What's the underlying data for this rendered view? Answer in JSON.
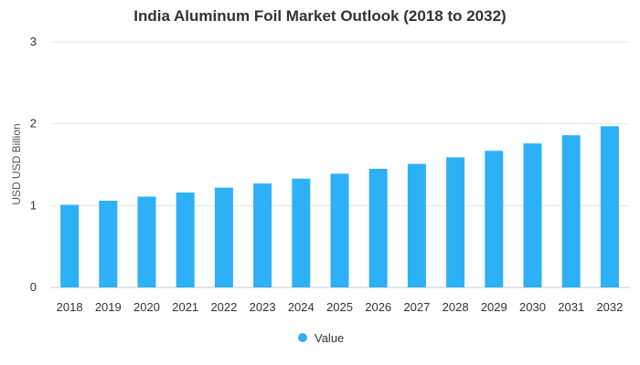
{
  "chart_data": {
    "type": "bar",
    "title": "India Aluminum Foil Market Outlook (2018 to 2032)",
    "xlabel": "",
    "ylabel": "USD USD Billion",
    "categories": [
      "2018",
      "2019",
      "2020",
      "2021",
      "2022",
      "2023",
      "2024",
      "2025",
      "2026",
      "2027",
      "2028",
      "2029",
      "2030",
      "2031",
      "2032"
    ],
    "series": [
      {
        "name": "Value",
        "values": [
          1.01,
          1.06,
          1.11,
          1.16,
          1.22,
          1.27,
          1.33,
          1.39,
          1.45,
          1.51,
          1.59,
          1.67,
          1.76,
          1.86,
          1.97
        ]
      }
    ],
    "ylim": [
      0,
      3
    ],
    "yticks": [
      "0",
      "1",
      "2",
      "3"
    ],
    "grid": true,
    "legend_position": "bottom-center",
    "bar_color": "#2eb0f7",
    "grid_color": "#e6e6e6"
  }
}
